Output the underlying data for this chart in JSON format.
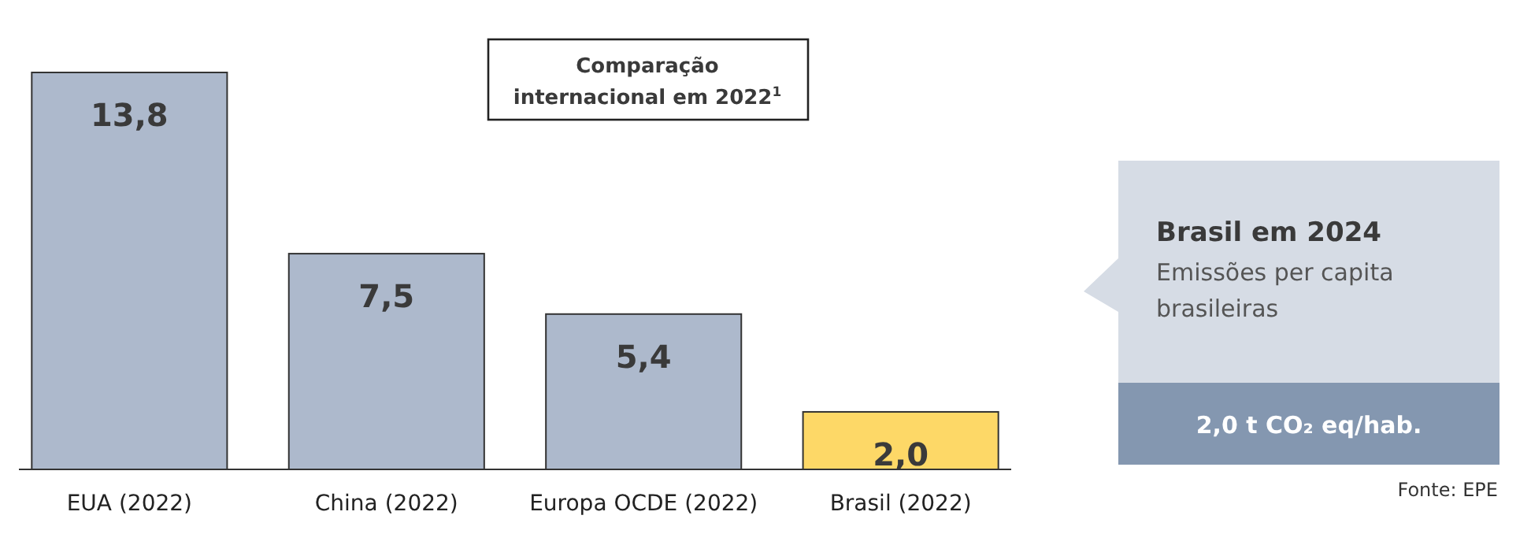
{
  "chart_data": {
    "type": "bar",
    "title": "Comparação internacional em 2022$^{1}$",
    "categories": [
      "EUA (2022)",
      "China (2022)",
      "Europa OCDE (2022)",
      "Brasil (2022)"
    ],
    "values": [
      13.8,
      7.5,
      5.4,
      2.0
    ],
    "colors": [
      "#adb9cc",
      "#adb9cc",
      "#adb9cc",
      "#fdd867"
    ],
    "value_labels": [
      "13,8",
      "7,5",
      "5,4",
      "2,0"
    ],
    "annotations": [
      "Brasil em 2024",
      "Emissões per capita brasileiras",
      "2,0 t CO₂ eq/hab.",
      "Fonte: EPE"
    ]
  }
}
